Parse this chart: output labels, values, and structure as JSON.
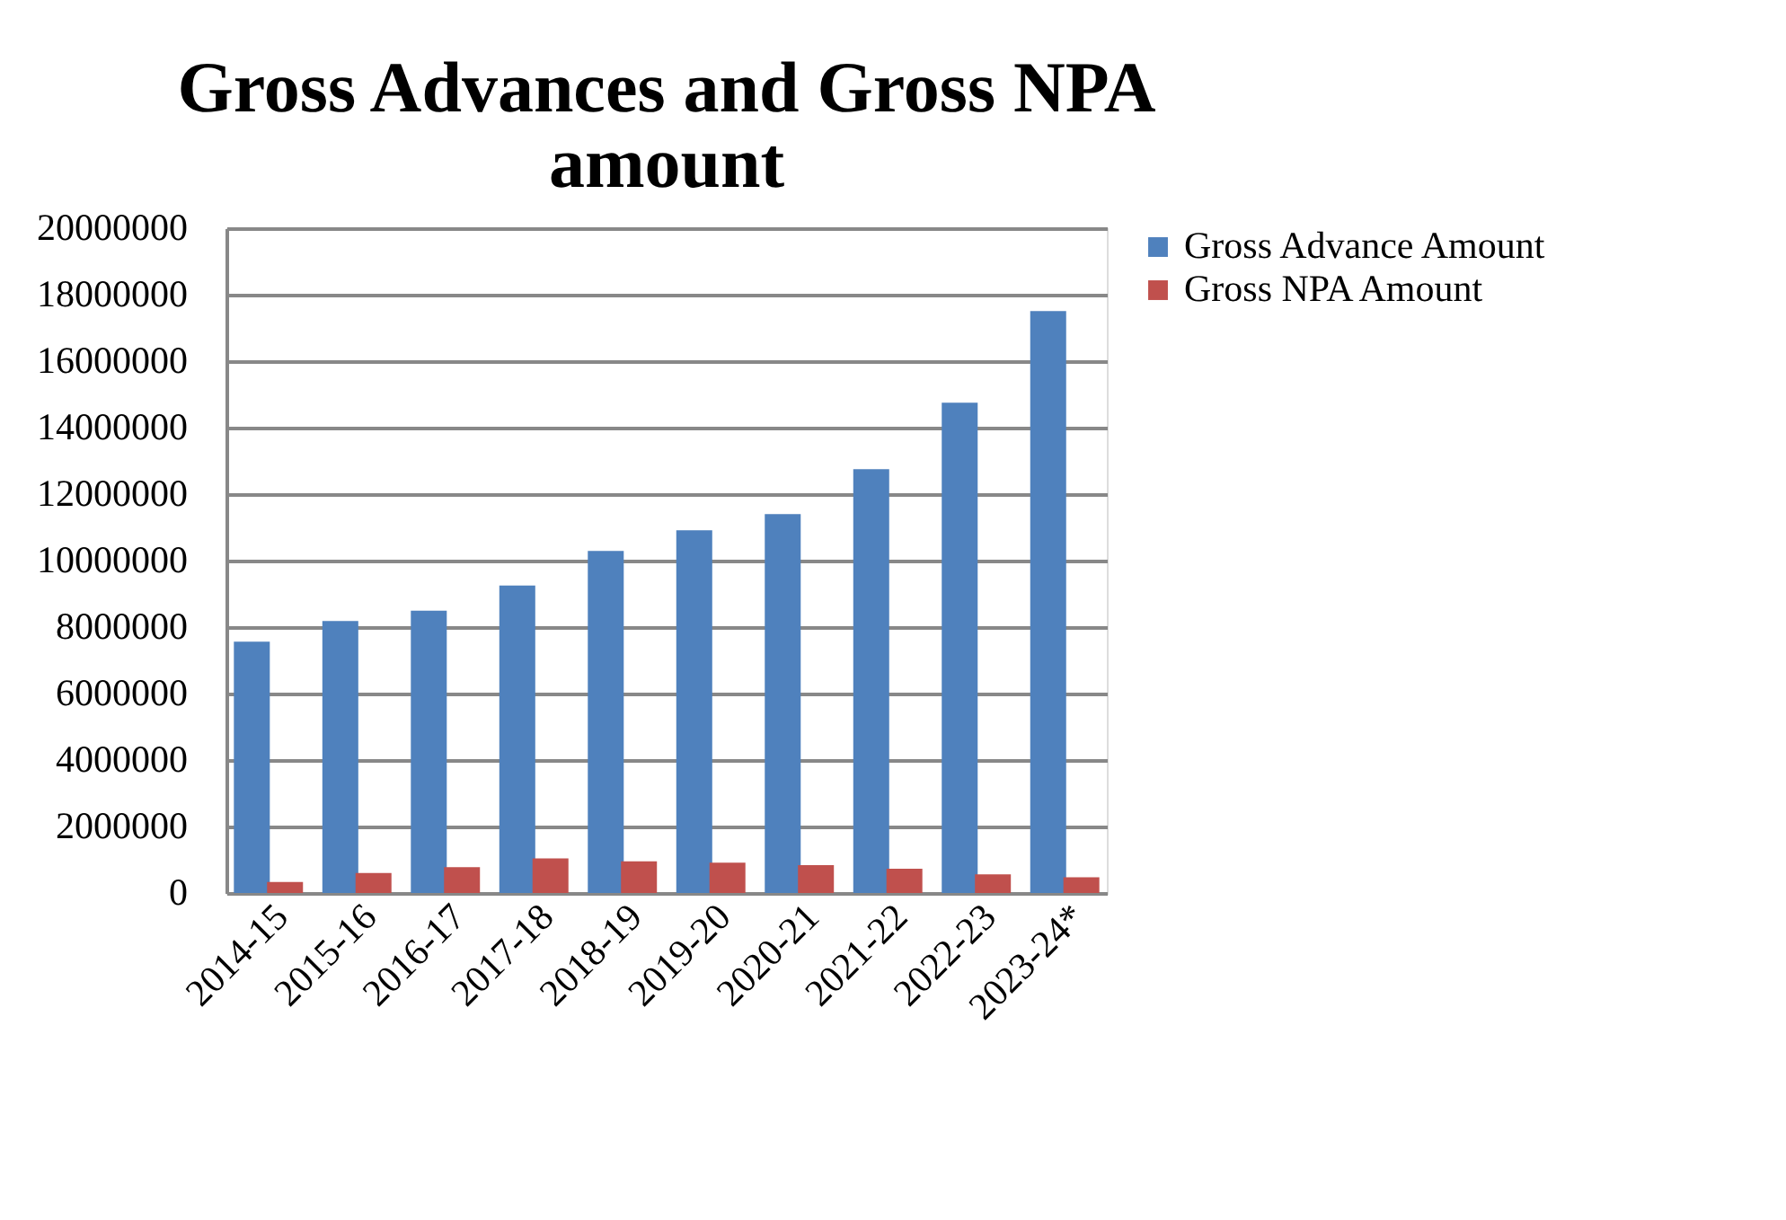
{
  "chart_data": {
    "type": "bar",
    "title": [
      "Gross Advances and Gross NPA",
      "amount"
    ],
    "categories": [
      "2014-15",
      "2015-16",
      "2016-17",
      "2017-18",
      "2018-19",
      "2019-20",
      "2020-21",
      "2021-22",
      "2022-23",
      "2023-24*"
    ],
    "series": [
      {
        "name": "Gross Advance Amount",
        "color": "#4f81bd",
        "values": [
          7560000,
          8180000,
          8490000,
          9250000,
          10290000,
          10910000,
          11400000,
          12750000,
          14750000,
          17510000
        ]
      },
      {
        "name": "Gross NPA Amount",
        "color": "#c0504d",
        "values": [
          330000,
          600000,
          780000,
          1040000,
          950000,
          910000,
          840000,
          730000,
          560000,
          470000
        ]
      }
    ],
    "ylim": [
      0,
      20000000
    ],
    "yticks": [
      0,
      2000000,
      4000000,
      6000000,
      8000000,
      10000000,
      12000000,
      14000000,
      16000000,
      18000000,
      20000000
    ],
    "grid": "y",
    "legend": "right"
  }
}
